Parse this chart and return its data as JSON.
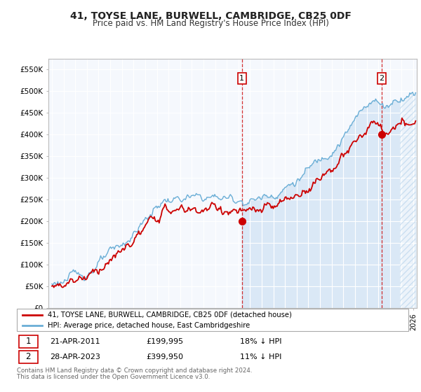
{
  "title": "41, TOYSE LANE, BURWELL, CAMBRIDGE, CB25 0DF",
  "subtitle": "Price paid vs. HM Land Registry's House Price Index (HPI)",
  "ylabel_ticks": [
    "£0",
    "£50K",
    "£100K",
    "£150K",
    "£200K",
    "£250K",
    "£300K",
    "£350K",
    "£400K",
    "£450K",
    "£500K",
    "£550K"
  ],
  "ylim": [
    0,
    575000
  ],
  "yticks": [
    0,
    50000,
    100000,
    150000,
    200000,
    250000,
    300000,
    350000,
    400000,
    450000,
    500000,
    550000
  ],
  "legend_line1": "41, TOYSE LANE, BURWELL, CAMBRIDGE, CB25 0DF (detached house)",
  "legend_line2": "HPI: Average price, detached house, East Cambridgeshire",
  "sale1_date": "21-APR-2011",
  "sale1_price": 199995,
  "sale1_label": "18% ↓ HPI",
  "sale1_x": 2011.3,
  "sale2_date": "28-APR-2023",
  "sale2_price": 399950,
  "sale2_label": "11% ↓ HPI",
  "sale2_x": 2023.3,
  "footnote1": "Contains HM Land Registry data © Crown copyright and database right 2024.",
  "footnote2": "This data is licensed under the Open Government Licence v3.0.",
  "hpi_color": "#6aaed6",
  "price_color": "#cc0000",
  "sale_vline_color": "#cc0000",
  "bg_color": "#f0f4fa",
  "fill_color": "#d6e6f5",
  "grid_color": "#ffffff",
  "xlim_left": 1994.7,
  "xlim_right": 2026.3
}
